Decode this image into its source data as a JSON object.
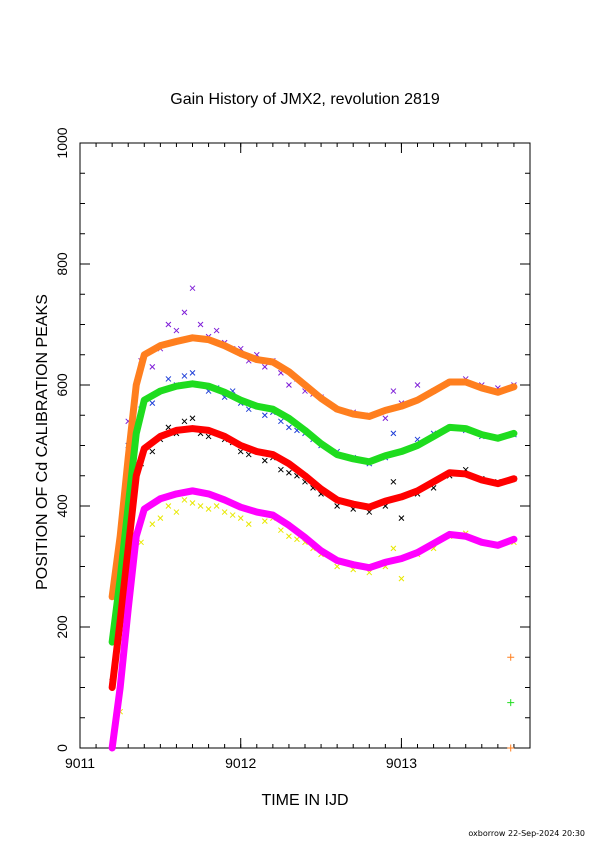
{
  "chart_data": {
    "type": "scatter",
    "title": "Gain History of JMX2, revolution 2819",
    "xlabel": "TIME IN IJD",
    "ylabel": "POSITION OF Cd CALIBRATION PEAKS",
    "xlim": [
      9011,
      9013.8
    ],
    "ylim": [
      0,
      1000
    ],
    "xticks": [
      9011,
      9012,
      9013
    ],
    "yticks": [
      0,
      200,
      400,
      600,
      800,
      1000
    ],
    "grid": false,
    "series": [
      {
        "color": "#7f1fd8",
        "marker": "x",
        "kind": "raw",
        "points": [
          [
            9011.2,
            250
          ],
          [
            9011.3,
            540
          ],
          [
            9011.38,
            640
          ],
          [
            9011.45,
            630
          ],
          [
            9011.5,
            660
          ],
          [
            9011.55,
            700
          ],
          [
            9011.6,
            690
          ],
          [
            9011.65,
            720
          ],
          [
            9011.7,
            760
          ],
          [
            9011.75,
            700
          ],
          [
            9011.8,
            680
          ],
          [
            9011.85,
            690
          ],
          [
            9011.9,
            670
          ],
          [
            9011.95,
            660
          ],
          [
            9012.0,
            660
          ],
          [
            9012.05,
            640
          ],
          [
            9012.1,
            650
          ],
          [
            9012.15,
            630
          ],
          [
            9012.2,
            640
          ],
          [
            9012.25,
            620
          ],
          [
            9012.3,
            600
          ],
          [
            9012.35,
            610
          ],
          [
            9012.4,
            590
          ],
          [
            9012.45,
            585
          ],
          [
            9012.5,
            580
          ],
          [
            9012.6,
            560
          ],
          [
            9012.7,
            555
          ],
          [
            9012.8,
            550
          ],
          [
            9012.9,
            545
          ],
          [
            9012.95,
            590
          ],
          [
            9013.0,
            570
          ],
          [
            9013.1,
            600
          ],
          [
            9013.2,
            590
          ],
          [
            9013.3,
            605
          ],
          [
            9013.4,
            610
          ],
          [
            9013.5,
            600
          ],
          [
            9013.6,
            595
          ],
          [
            9013.7,
            600
          ]
        ]
      },
      {
        "color": "#1f3fd8",
        "marker": "x",
        "kind": "raw",
        "points": [
          [
            9011.2,
            180
          ],
          [
            9011.3,
            500
          ],
          [
            9011.38,
            560
          ],
          [
            9011.45,
            570
          ],
          [
            9011.5,
            590
          ],
          [
            9011.55,
            610
          ],
          [
            9011.6,
            600
          ],
          [
            9011.65,
            615
          ],
          [
            9011.7,
            620
          ],
          [
            9011.75,
            600
          ],
          [
            9011.8,
            590
          ],
          [
            9011.85,
            595
          ],
          [
            9011.9,
            580
          ],
          [
            9011.95,
            590
          ],
          [
            9012.0,
            570
          ],
          [
            9012.05,
            560
          ],
          [
            9012.1,
            565
          ],
          [
            9012.15,
            550
          ],
          [
            9012.2,
            555
          ],
          [
            9012.25,
            540
          ],
          [
            9012.3,
            530
          ],
          [
            9012.35,
            525
          ],
          [
            9012.4,
            520
          ],
          [
            9012.45,
            510
          ],
          [
            9012.5,
            500
          ],
          [
            9012.6,
            490
          ],
          [
            9012.7,
            480
          ],
          [
            9012.8,
            470
          ],
          [
            9012.9,
            480
          ],
          [
            9012.95,
            520
          ],
          [
            9013.0,
            490
          ],
          [
            9013.1,
            510
          ],
          [
            9013.2,
            520
          ],
          [
            9013.3,
            530
          ],
          [
            9013.4,
            525
          ],
          [
            9013.5,
            515
          ],
          [
            9013.6,
            512
          ],
          [
            9013.7,
            518
          ]
        ]
      },
      {
        "color": "#000000",
        "marker": "x",
        "kind": "raw",
        "points": [
          [
            9011.2,
            110
          ],
          [
            9011.3,
            430
          ],
          [
            9011.38,
            470
          ],
          [
            9011.45,
            490
          ],
          [
            9011.5,
            510
          ],
          [
            9011.55,
            530
          ],
          [
            9011.6,
            520
          ],
          [
            9011.65,
            540
          ],
          [
            9011.7,
            545
          ],
          [
            9011.75,
            520
          ],
          [
            9011.8,
            515
          ],
          [
            9011.85,
            520
          ],
          [
            9011.9,
            510
          ],
          [
            9011.95,
            505
          ],
          [
            9012.0,
            490
          ],
          [
            9012.05,
            485
          ],
          [
            9012.1,
            490
          ],
          [
            9012.15,
            475
          ],
          [
            9012.2,
            480
          ],
          [
            9012.25,
            460
          ],
          [
            9012.3,
            455
          ],
          [
            9012.35,
            450
          ],
          [
            9012.4,
            440
          ],
          [
            9012.45,
            430
          ],
          [
            9012.5,
            420
          ],
          [
            9012.6,
            400
          ],
          [
            9012.7,
            395
          ],
          [
            9012.8,
            390
          ],
          [
            9012.9,
            400
          ],
          [
            9012.95,
            440
          ],
          [
            9013.0,
            380
          ],
          [
            9013.1,
            420
          ],
          [
            9013.2,
            430
          ],
          [
            9013.3,
            450
          ],
          [
            9013.4,
            460
          ],
          [
            9013.5,
            445
          ],
          [
            9013.6,
            440
          ],
          [
            9013.7,
            445
          ]
        ]
      },
      {
        "color": "#e8e800",
        "marker": "x",
        "kind": "raw",
        "points": [
          [
            9011.25,
            60
          ],
          [
            9011.3,
            300
          ],
          [
            9011.38,
            340
          ],
          [
            9011.45,
            370
          ],
          [
            9011.5,
            380
          ],
          [
            9011.55,
            400
          ],
          [
            9011.6,
            390
          ],
          [
            9011.65,
            410
          ],
          [
            9011.7,
            405
          ],
          [
            9011.75,
            400
          ],
          [
            9011.8,
            395
          ],
          [
            9011.85,
            400
          ],
          [
            9011.9,
            390
          ],
          [
            9011.95,
            385
          ],
          [
            9012.0,
            380
          ],
          [
            9012.05,
            370
          ],
          [
            9012.1,
            390
          ],
          [
            9012.15,
            375
          ],
          [
            9012.2,
            380
          ],
          [
            9012.25,
            360
          ],
          [
            9012.3,
            350
          ],
          [
            9012.35,
            345
          ],
          [
            9012.4,
            340
          ],
          [
            9012.45,
            330
          ],
          [
            9012.5,
            320
          ],
          [
            9012.6,
            300
          ],
          [
            9012.7,
            295
          ],
          [
            9012.8,
            290
          ],
          [
            9012.9,
            300
          ],
          [
            9012.95,
            330
          ],
          [
            9013.0,
            280
          ],
          [
            9013.1,
            320
          ],
          [
            9013.2,
            330
          ],
          [
            9013.3,
            350
          ],
          [
            9013.4,
            355
          ],
          [
            9013.5,
            340
          ],
          [
            9013.6,
            335
          ],
          [
            9013.7,
            340
          ]
        ]
      },
      {
        "color": "#ff7f1f",
        "marker": "+",
        "kind": "smooth",
        "points": [
          [
            9011.2,
            250
          ],
          [
            9011.25,
            350
          ],
          [
            9011.3,
            480
          ],
          [
            9011.35,
            600
          ],
          [
            9011.4,
            650
          ],
          [
            9011.5,
            665
          ],
          [
            9011.6,
            672
          ],
          [
            9011.7,
            678
          ],
          [
            9011.8,
            675
          ],
          [
            9011.9,
            665
          ],
          [
            9012.0,
            652
          ],
          [
            9012.1,
            642
          ],
          [
            9012.2,
            638
          ],
          [
            9012.3,
            622
          ],
          [
            9012.4,
            600
          ],
          [
            9012.5,
            578
          ],
          [
            9012.6,
            560
          ],
          [
            9012.7,
            552
          ],
          [
            9012.8,
            548
          ],
          [
            9012.9,
            558
          ],
          [
            9013.0,
            565
          ],
          [
            9013.1,
            575
          ],
          [
            9013.2,
            590
          ],
          [
            9013.3,
            605
          ],
          [
            9013.4,
            605
          ],
          [
            9013.5,
            595
          ],
          [
            9013.6,
            588
          ],
          [
            9013.7,
            597
          ]
        ]
      },
      {
        "color": "#1fdc1f",
        "marker": "+",
        "kind": "smooth",
        "points": [
          [
            9011.2,
            175
          ],
          [
            9011.25,
            280
          ],
          [
            9011.3,
            400
          ],
          [
            9011.35,
            520
          ],
          [
            9011.4,
            575
          ],
          [
            9011.5,
            590
          ],
          [
            9011.6,
            598
          ],
          [
            9011.7,
            602
          ],
          [
            9011.8,
            598
          ],
          [
            9011.9,
            588
          ],
          [
            9012.0,
            575
          ],
          [
            9012.1,
            565
          ],
          [
            9012.2,
            560
          ],
          [
            9012.3,
            545
          ],
          [
            9012.4,
            525
          ],
          [
            9012.5,
            503
          ],
          [
            9012.6,
            485
          ],
          [
            9012.7,
            478
          ],
          [
            9012.8,
            473
          ],
          [
            9012.9,
            483
          ],
          [
            9013.0,
            490
          ],
          [
            9013.1,
            500
          ],
          [
            9013.2,
            515
          ],
          [
            9013.3,
            530
          ],
          [
            9013.4,
            528
          ],
          [
            9013.5,
            518
          ],
          [
            9013.6,
            512
          ],
          [
            9013.7,
            520
          ]
        ]
      },
      {
        "color": "#ff0000",
        "marker": "+",
        "kind": "smooth",
        "points": [
          [
            9011.2,
            100
          ],
          [
            9011.25,
            210
          ],
          [
            9011.3,
            330
          ],
          [
            9011.35,
            450
          ],
          [
            9011.4,
            495
          ],
          [
            9011.5,
            515
          ],
          [
            9011.6,
            525
          ],
          [
            9011.7,
            528
          ],
          [
            9011.8,
            525
          ],
          [
            9011.9,
            515
          ],
          [
            9012.0,
            500
          ],
          [
            9012.1,
            490
          ],
          [
            9012.2,
            485
          ],
          [
            9012.3,
            470
          ],
          [
            9012.4,
            450
          ],
          [
            9012.5,
            428
          ],
          [
            9012.6,
            410
          ],
          [
            9012.7,
            403
          ],
          [
            9012.8,
            398
          ],
          [
            9012.9,
            408
          ],
          [
            9013.0,
            415
          ],
          [
            9013.1,
            425
          ],
          [
            9013.2,
            440
          ],
          [
            9013.3,
            455
          ],
          [
            9013.4,
            453
          ],
          [
            9013.5,
            443
          ],
          [
            9013.6,
            437
          ],
          [
            9013.7,
            445
          ]
        ]
      },
      {
        "color": "#ff00ff",
        "marker": "+",
        "kind": "smooth",
        "points": [
          [
            9011.2,
            0
          ],
          [
            9011.25,
            100
          ],
          [
            9011.3,
            230
          ],
          [
            9011.35,
            350
          ],
          [
            9011.4,
            395
          ],
          [
            9011.5,
            412
          ],
          [
            9011.6,
            420
          ],
          [
            9011.7,
            425
          ],
          [
            9011.8,
            420
          ],
          [
            9011.9,
            410
          ],
          [
            9012.0,
            398
          ],
          [
            9012.1,
            390
          ],
          [
            9012.2,
            385
          ],
          [
            9012.3,
            368
          ],
          [
            9012.4,
            348
          ],
          [
            9012.5,
            326
          ],
          [
            9012.6,
            310
          ],
          [
            9012.7,
            303
          ],
          [
            9012.8,
            298
          ],
          [
            9012.9,
            307
          ],
          [
            9013.0,
            313
          ],
          [
            9013.1,
            323
          ],
          [
            9013.2,
            338
          ],
          [
            9013.3,
            353
          ],
          [
            9013.4,
            350
          ],
          [
            9013.5,
            340
          ],
          [
            9013.6,
            335
          ],
          [
            9013.7,
            345
          ]
        ]
      }
    ],
    "reference_marks": [
      {
        "color": "#ff7f1f",
        "marker": "+",
        "x": 9013.68,
        "y": 150
      },
      {
        "color": "#1fdc1f",
        "marker": "+",
        "x": 9013.68,
        "y": 75
      },
      {
        "color": "#ff7f1f",
        "marker": "+",
        "x": 9013.68,
        "y": 0
      }
    ]
  },
  "footer": {
    "stamp": "oxborrow 22-Sep-2024 20:30"
  }
}
